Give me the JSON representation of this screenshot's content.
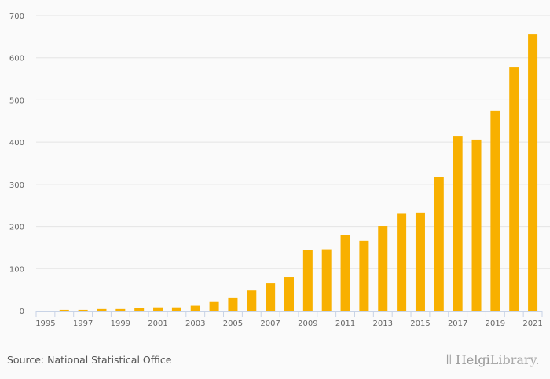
{
  "chart_data": {
    "type": "bar",
    "title": "",
    "xlabel": "",
    "ylabel": "",
    "categories": [
      "1995",
      "1996",
      "1997",
      "1998",
      "1999",
      "2000",
      "2001",
      "2002",
      "2003",
      "2004",
      "2005",
      "2006",
      "2007",
      "2008",
      "2009",
      "2010",
      "2011",
      "2012",
      "2013",
      "2014",
      "2015",
      "2016",
      "2017",
      "2018",
      "2019",
      "2020",
      "2021"
    ],
    "values": [
      0,
      2,
      2,
      4,
      4,
      6,
      8,
      8,
      12,
      21,
      30,
      48,
      65,
      80,
      144,
      146,
      179,
      166,
      201,
      230,
      233,
      318,
      415,
      406,
      475,
      577,
      657
    ],
    "x_tick_labels": [
      "1995",
      "1997",
      "1999",
      "2001",
      "2003",
      "2005",
      "2007",
      "2009",
      "2011",
      "2013",
      "2015",
      "2017",
      "2019",
      "2021"
    ],
    "y_ticks": [
      "0",
      "100",
      "200",
      "300",
      "400",
      "500",
      "600",
      "700"
    ],
    "ylim": [
      0,
      700
    ],
    "grid": true,
    "bar_color": "#f8b000"
  },
  "source": "Source: National Statistical Office",
  "logo": {
    "part1": "Helgi",
    "part2": "Library."
  }
}
